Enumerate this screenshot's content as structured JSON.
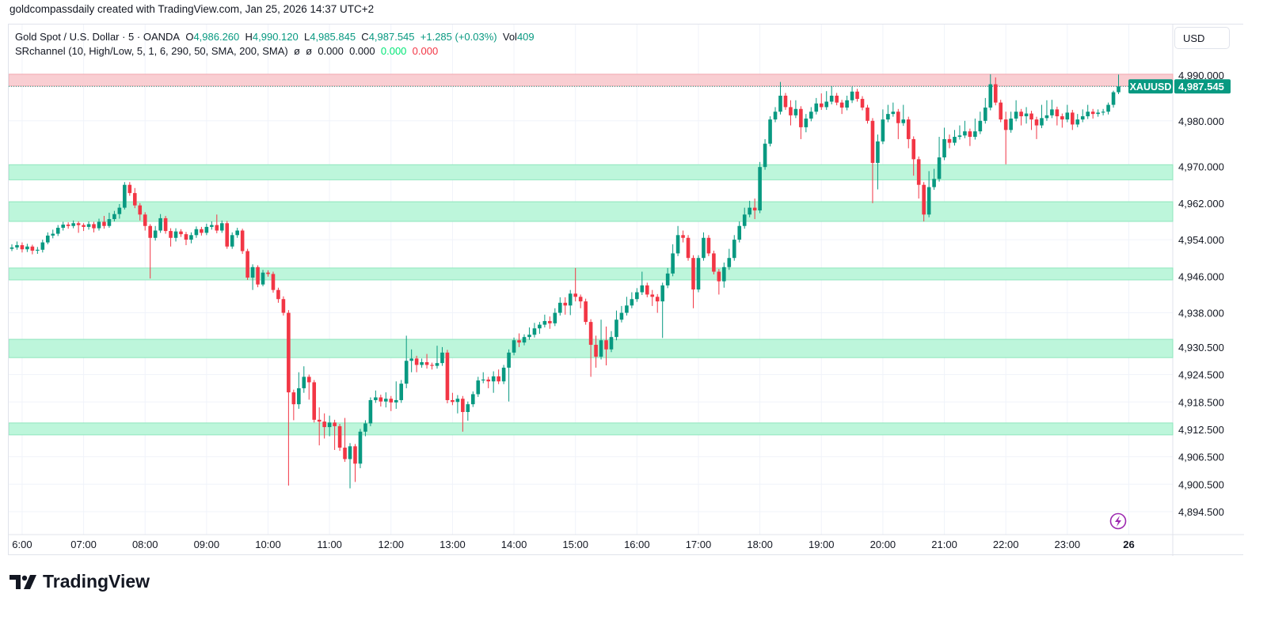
{
  "credit": "goldcompassdaily created with TradingView.com, Jan 25, 2026 14:37 UTC+2",
  "legend": {
    "symbol": "Gold Spot / U.S. Dollar · 5 · OANDA",
    "o_label": "O",
    "o": "4,986.260",
    "h_label": "H",
    "h": "4,990.120",
    "l_label": "L",
    "l": "4,985.845",
    "c_label": "C",
    "c": "4,987.545",
    "change": "+1.285 (+0.03%)",
    "vol_label": "Vol",
    "vol": "409",
    "indicator": "SRchannel (10, High/Low, 5, 1, 6, 290, 50, SMA, 200, SMA)",
    "ind_sym1": "ø",
    "ind_sym2": "ø",
    "ind_v1": "0.000",
    "ind_v2": "0.000",
    "ind_v3": "0.000",
    "ind_v4": "0.000"
  },
  "currency_button": "USD",
  "last_price": {
    "symbol": "XAUUSD",
    "value": "4,987.545"
  },
  "brand": "TradingView",
  "icons": {
    "alert": "lightning-icon",
    "logo": "tradingview-logo-icon"
  },
  "colors": {
    "up": "#089981",
    "down": "#f23645",
    "support_zone": "#b9f6d9",
    "resistance_zone": "#f8c9cd",
    "grid": "#f0f3fa"
  },
  "chart_data": {
    "type": "candlestick",
    "interval": "5",
    "start_time": "05:50",
    "y_ticks": [
      "4,990.000",
      "4,980.000",
      "4,970.000",
      "4,962.000",
      "4,954.000",
      "4,946.000",
      "4,938.000",
      "4,930.500",
      "4,924.500",
      "4,918.500",
      "4,912.500",
      "4,906.500",
      "4,900.500",
      "4,894.500"
    ],
    "y_tick_values": [
      4990,
      4980,
      4970,
      4962,
      4954,
      4946,
      4938,
      4930.5,
      4924.5,
      4918.5,
      4912.5,
      4906.5,
      4900.5,
      4894.5
    ],
    "x_ticks": [
      "6:00",
      "07:00",
      "08:00",
      "09:00",
      "10:00",
      "11:00",
      "12:00",
      "13:00",
      "14:00",
      "15:00",
      "16:00",
      "17:00",
      "18:00",
      "19:00",
      "20:00",
      "21:00",
      "22:00",
      "23:00",
      "26"
    ],
    "ylim": [
      4892,
      4995
    ],
    "grid": true,
    "support_zones": [
      [
        4967.1,
        4970.4
      ],
      [
        4958.0,
        4962.3
      ],
      [
        4945.2,
        4947.8
      ],
      [
        4928.2,
        4932.2
      ],
      [
        4911.3,
        4913.9
      ]
    ],
    "resistance_zones": [
      [
        4987.6,
        4990.2
      ]
    ],
    "candles_ohlc": [
      [
        4952.0,
        4953.0,
        4951.5,
        4952.3
      ],
      [
        4952.3,
        4953.6,
        4951.8,
        4952.8
      ],
      [
        4952.8,
        4953.4,
        4951.2,
        4951.9
      ],
      [
        4951.9,
        4953.1,
        4951.3,
        4952.5
      ],
      [
        4952.5,
        4952.9,
        4950.8,
        4951.6
      ],
      [
        4951.6,
        4952.4,
        4950.9,
        4951.8
      ],
      [
        4951.8,
        4954.0,
        4951.2,
        4953.4
      ],
      [
        4953.4,
        4955.6,
        4953.0,
        4954.9
      ],
      [
        4954.9,
        4956.2,
        4954.3,
        4955.3
      ],
      [
        4955.3,
        4957.2,
        4954.8,
        4956.6
      ],
      [
        4956.6,
        4957.9,
        4956.0,
        4957.3
      ],
      [
        4957.3,
        4957.8,
        4956.4,
        4957.0
      ],
      [
        4957.0,
        4958.2,
        4956.5,
        4957.6
      ],
      [
        4957.6,
        4958.0,
        4955.5,
        4957.2
      ],
      [
        4957.2,
        4957.6,
        4955.9,
        4956.8
      ],
      [
        4956.8,
        4958.0,
        4956.2,
        4957.4
      ],
      [
        4957.4,
        4957.9,
        4955.6,
        4956.5
      ],
      [
        4956.5,
        4958.6,
        4956.0,
        4957.9
      ],
      [
        4957.9,
        4959.2,
        4956.4,
        4957.0
      ],
      [
        4957.0,
        4959.9,
        4956.6,
        4958.5
      ],
      [
        4958.5,
        4960.3,
        4958.0,
        4959.6
      ],
      [
        4959.6,
        4961.8,
        4958.6,
        4961.0
      ],
      [
        4961.0,
        4966.6,
        4960.6,
        4966.0
      ],
      [
        4966.0,
        4966.6,
        4963.6,
        4964.2
      ],
      [
        4964.2,
        4965.3,
        4960.9,
        4961.5
      ],
      [
        4961.5,
        4962.0,
        4958.2,
        4959.5
      ],
      [
        4959.5,
        4960.0,
        4956.0,
        4957.0
      ],
      [
        4957.0,
        4957.4,
        4945.5,
        4954.4
      ],
      [
        4954.4,
        4957.0,
        4953.8,
        4956.0
      ],
      [
        4956.0,
        4959.6,
        4955.5,
        4958.7
      ],
      [
        4958.7,
        4959.2,
        4955.3,
        4955.9
      ],
      [
        4955.9,
        4956.5,
        4952.5,
        4954.4
      ],
      [
        4954.4,
        4956.5,
        4953.6,
        4955.8
      ],
      [
        4955.8,
        4956.3,
        4954.6,
        4955.2
      ],
      [
        4955.2,
        4955.7,
        4952.8,
        4954.0
      ],
      [
        4954.0,
        4955.6,
        4953.2,
        4955.0
      ],
      [
        4955.0,
        4956.9,
        4954.4,
        4956.3
      ],
      [
        4956.3,
        4956.8,
        4954.9,
        4955.5
      ],
      [
        4955.5,
        4957.5,
        4955.0,
        4956.8
      ],
      [
        4956.8,
        4958.0,
        4956.2,
        4957.2
      ],
      [
        4957.2,
        4959.5,
        4955.4,
        4956.0
      ],
      [
        4956.0,
        4958.2,
        4955.5,
        4957.6
      ],
      [
        4957.6,
        4958.1,
        4952.0,
        4952.5
      ],
      [
        4952.5,
        4955.6,
        4952.0,
        4955.0
      ],
      [
        4955.0,
        4956.6,
        4954.4,
        4956.0
      ],
      [
        4956.0,
        4956.4,
        4950.9,
        4951.5
      ],
      [
        4951.5,
        4952.0,
        4945.2,
        4945.7
      ],
      [
        4945.7,
        4948.6,
        4943.0,
        4948.0
      ],
      [
        4948.0,
        4948.4,
        4943.6,
        4944.2
      ],
      [
        4944.2,
        4947.4,
        4943.8,
        4946.8
      ],
      [
        4946.8,
        4947.3,
        4945.9,
        4946.5
      ],
      [
        4946.5,
        4947.0,
        4942.4,
        4943.0
      ],
      [
        4943.0,
        4943.5,
        4940.2,
        4941.0
      ],
      [
        4941.0,
        4941.6,
        4937.4,
        4938.0
      ],
      [
        4938.0,
        4938.6,
        4900.2,
        4920.6
      ],
      [
        4920.6,
        4921.2,
        4914.5,
        4918.0
      ],
      [
        4918.0,
        4925.0,
        4917.0,
        4921.5
      ],
      [
        4921.5,
        4926.3,
        4920.5,
        4924.0
      ],
      [
        4924.0,
        4924.5,
        4919.0,
        4922.8
      ],
      [
        4922.8,
        4923.3,
        4914.0,
        4914.6
      ],
      [
        4914.6,
        4917.3,
        4909.0,
        4914.2
      ],
      [
        4914.2,
        4916.0,
        4910.5,
        4913.0
      ],
      [
        4913.0,
        4915.5,
        4911.0,
        4914.0
      ],
      [
        4914.0,
        4914.6,
        4908.0,
        4913.2
      ],
      [
        4913.2,
        4913.7,
        4907.8,
        4908.5
      ],
      [
        4908.5,
        4915.0,
        4905.4,
        4906.0
      ],
      [
        4906.0,
        4909.5,
        4899.6,
        4908.8
      ],
      [
        4908.8,
        4909.3,
        4901.0,
        4905.0
      ],
      [
        4905.0,
        4912.6,
        4904.0,
        4912.0
      ],
      [
        4912.0,
        4914.5,
        4911.0,
        4913.8
      ],
      [
        4913.8,
        4919.5,
        4913.2,
        4918.9
      ],
      [
        4918.9,
        4921.0,
        4918.3,
        4919.5
      ],
      [
        4919.5,
        4920.1,
        4917.5,
        4918.6
      ],
      [
        4918.6,
        4920.6,
        4917.3,
        4919.2
      ],
      [
        4919.2,
        4919.8,
        4916.5,
        4918.4
      ],
      [
        4918.4,
        4923.0,
        4917.0,
        4918.9
      ],
      [
        4918.9,
        4923.3,
        4918.3,
        4922.5
      ],
      [
        4922.5,
        4933.0,
        4921.5,
        4927.5
      ],
      [
        4927.5,
        4930.0,
        4925.0,
        4928.0
      ],
      [
        4928.0,
        4928.6,
        4925.0,
        4926.6
      ],
      [
        4926.6,
        4928.0,
        4926.0,
        4927.2
      ],
      [
        4927.2,
        4929.0,
        4925.8,
        4926.6
      ],
      [
        4926.6,
        4927.1,
        4925.6,
        4926.4
      ],
      [
        4926.4,
        4930.8,
        4925.8,
        4927.0
      ],
      [
        4927.0,
        4930.5,
        4926.4,
        4929.3
      ],
      [
        4929.3,
        4929.9,
        4918.2,
        4918.9
      ],
      [
        4918.9,
        4920.5,
        4917.8,
        4918.5
      ],
      [
        4918.5,
        4920.0,
        4916.0,
        4919.2
      ],
      [
        4919.2,
        4919.8,
        4912.0,
        4916.3
      ],
      [
        4916.3,
        4918.6,
        4914.4,
        4918.0
      ],
      [
        4918.0,
        4920.8,
        4917.4,
        4920.2
      ],
      [
        4920.2,
        4924.0,
        4919.6,
        4923.2
      ],
      [
        4923.2,
        4925.0,
        4922.6,
        4923.4
      ],
      [
        4923.4,
        4924.0,
        4921.5,
        4923.0
      ],
      [
        4923.0,
        4925.2,
        4920.5,
        4924.1
      ],
      [
        4924.1,
        4925.6,
        4922.4,
        4923.0
      ],
      [
        4923.0,
        4926.6,
        4922.4,
        4926.0
      ],
      [
        4926.0,
        4930.0,
        4918.6,
        4929.3
      ],
      [
        4929.3,
        4932.6,
        4928.7,
        4932.0
      ],
      [
        4932.0,
        4933.5,
        4930.5,
        4931.5
      ],
      [
        4931.5,
        4933.3,
        4930.9,
        4932.7
      ],
      [
        4932.7,
        4934.8,
        4932.1,
        4933.2
      ],
      [
        4933.2,
        4935.8,
        4932.6,
        4934.6
      ],
      [
        4934.6,
        4936.0,
        4933.4,
        4935.4
      ],
      [
        4935.4,
        4937.6,
        4934.8,
        4936.2
      ],
      [
        4936.2,
        4937.2,
        4934.5,
        4935.7
      ],
      [
        4935.7,
        4939.0,
        4935.1,
        4938.0
      ],
      [
        4938.0,
        4941.4,
        4937.4,
        4940.2
      ],
      [
        4940.2,
        4941.4,
        4937.6,
        4939.6
      ],
      [
        4939.6,
        4943.0,
        4937.5,
        4942.2
      ],
      [
        4942.2,
        4947.8,
        4940.5,
        4941.5
      ],
      [
        4941.5,
        4942.0,
        4939.0,
        4940.5
      ],
      [
        4940.5,
        4941.1,
        4935.4,
        4936.0
      ],
      [
        4936.0,
        4936.6,
        4924.0,
        4931.0
      ],
      [
        4931.0,
        4933.0,
        4926.0,
        4928.4
      ],
      [
        4928.4,
        4936.5,
        4927.8,
        4932.0
      ],
      [
        4932.0,
        4935.0,
        4926.5,
        4930.0
      ],
      [
        4930.0,
        4934.0,
        4929.4,
        4932.7
      ],
      [
        4932.7,
        4938.5,
        4932.0,
        4936.5
      ],
      [
        4936.5,
        4939.5,
        4935.9,
        4938.0
      ],
      [
        4938.0,
        4941.5,
        4937.4,
        4939.6
      ],
      [
        4939.6,
        4942.5,
        4939.0,
        4941.0
      ],
      [
        4941.0,
        4943.4,
        4940.4,
        4942.5
      ],
      [
        4942.5,
        4947.0,
        4941.9,
        4944.0
      ],
      [
        4944.0,
        4944.6,
        4941.4,
        4942.0
      ],
      [
        4942.0,
        4943.0,
        4939.5,
        4941.5
      ],
      [
        4941.5,
        4942.1,
        4938.0,
        4940.5
      ],
      [
        4940.5,
        4944.6,
        4932.5,
        4944.0
      ],
      [
        4944.0,
        4947.8,
        4943.4,
        4946.6
      ],
      [
        4946.6,
        4953.0,
        4946.0,
        4951.0
      ],
      [
        4951.0,
        4957.0,
        4950.4,
        4955.0
      ],
      [
        4955.0,
        4956.0,
        4953.4,
        4954.4
      ],
      [
        4954.4,
        4955.0,
        4949.4,
        4950.0
      ],
      [
        4950.0,
        4950.6,
        4939.0,
        4943.1
      ],
      [
        4943.1,
        4950.6,
        4942.5,
        4950.0
      ],
      [
        4950.0,
        4955.6,
        4949.4,
        4954.4
      ],
      [
        4954.4,
        4955.0,
        4950.4,
        4951.0
      ],
      [
        4951.0,
        4951.6,
        4946.4,
        4947.0
      ],
      [
        4947.0,
        4947.6,
        4942.0,
        4944.9
      ],
      [
        4944.9,
        4949.0,
        4943.5,
        4948.0
      ],
      [
        4948.0,
        4952.0,
        4947.4,
        4950.0
      ],
      [
        4950.0,
        4955.0,
        4949.4,
        4954.0
      ],
      [
        4954.0,
        4958.0,
        4953.4,
        4957.0
      ],
      [
        4957.0,
        4961.0,
        4956.4,
        4959.5
      ],
      [
        4959.5,
        4962.5,
        4958.9,
        4961.0
      ],
      [
        4961.0,
        4963.0,
        4958.5,
        4960.4
      ],
      [
        4960.4,
        4971.0,
        4959.8,
        4969.9
      ],
      [
        4969.9,
        4976.0,
        4969.3,
        4975.0
      ],
      [
        4975.0,
        4981.0,
        4974.4,
        4980.3
      ],
      [
        4980.3,
        4983.0,
        4979.7,
        4982.0
      ],
      [
        4982.0,
        4988.5,
        4981.4,
        4985.5
      ],
      [
        4985.5,
        4986.1,
        4982.4,
        4983.0
      ],
      [
        4983.0,
        4984.5,
        4979.0,
        4981.2
      ],
      [
        4981.2,
        4984.5,
        4980.6,
        4982.6
      ],
      [
        4982.6,
        4983.2,
        4976.0,
        4978.6
      ],
      [
        4978.6,
        4981.5,
        4977.5,
        4980.5
      ],
      [
        4980.5,
        4983.0,
        4979.9,
        4982.0
      ],
      [
        4982.0,
        4985.0,
        4981.4,
        4983.8
      ],
      [
        4983.8,
        4986.0,
        4982.4,
        4983.0
      ],
      [
        4983.0,
        4986.5,
        4982.4,
        4984.2
      ],
      [
        4984.2,
        4987.6,
        4983.6,
        4985.5
      ],
      [
        4985.5,
        4986.1,
        4983.4,
        4984.0
      ],
      [
        4984.0,
        4984.6,
        4981.5,
        4982.9
      ],
      [
        4982.9,
        4985.5,
        4982.3,
        4984.5
      ],
      [
        4984.5,
        4987.5,
        4983.9,
        4986.4
      ],
      [
        4986.4,
        4987.0,
        4984.2,
        4984.8
      ],
      [
        4984.8,
        4985.4,
        4982.3,
        4982.9
      ],
      [
        4982.9,
        4983.5,
        4979.4,
        4980.0
      ],
      [
        4980.0,
        4980.6,
        4962.0,
        4970.8
      ],
      [
        4970.8,
        4977.0,
        4965.0,
        4975.5
      ],
      [
        4975.5,
        4982.5,
        4974.9,
        4980.3
      ],
      [
        4980.3,
        4983.5,
        4979.7,
        4981.5
      ],
      [
        4981.5,
        4984.0,
        4980.9,
        4982.0
      ],
      [
        4982.0,
        4982.6,
        4976.0,
        4979.5
      ],
      [
        4979.5,
        4983.5,
        4978.9,
        4980.3
      ],
      [
        4980.3,
        4980.9,
        4974.0,
        4976.0
      ],
      [
        4976.0,
        4976.6,
        4968.0,
        4971.6
      ],
      [
        4971.6,
        4972.2,
        4963.0,
        4966.0
      ],
      [
        4966.0,
        4966.6,
        4958.0,
        4959.5
      ],
      [
        4959.5,
        4969.0,
        4958.9,
        4965.5
      ],
      [
        4965.5,
        4969.5,
        4964.9,
        4967.3
      ],
      [
        4967.3,
        4976.5,
        4966.7,
        4972.0
      ],
      [
        4972.0,
        4978.5,
        4971.4,
        4976.0
      ],
      [
        4976.0,
        4977.0,
        4974.0,
        4975.2
      ],
      [
        4975.2,
        4978.0,
        4974.6,
        4976.5
      ],
      [
        4976.5,
        4979.0,
        4975.9,
        4976.8
      ],
      [
        4976.8,
        4980.0,
        4976.2,
        4977.7
      ],
      [
        4977.7,
        4978.3,
        4974.5,
        4976.5
      ],
      [
        4976.5,
        4980.5,
        4975.9,
        4977.7
      ],
      [
        4977.7,
        4982.0,
        4977.1,
        4980.0
      ],
      [
        4980.0,
        4985.0,
        4979.4,
        4982.9
      ],
      [
        4982.9,
        4990.2,
        4982.3,
        4988.0
      ],
      [
        4988.0,
        4989.5,
        4983.4,
        4984.0
      ],
      [
        4984.0,
        4984.6,
        4979.7,
        4980.3
      ],
      [
        4980.3,
        4982.0,
        4970.5,
        4978.0
      ],
      [
        4978.0,
        4982.0,
        4977.4,
        4980.5
      ],
      [
        4980.5,
        4984.5,
        4979.9,
        4982.0
      ],
      [
        4982.0,
        4982.6,
        4979.0,
        4981.0
      ],
      [
        4981.0,
        4983.0,
        4979.4,
        4981.6
      ],
      [
        4981.6,
        4982.2,
        4978.0,
        4980.3
      ],
      [
        4980.3,
        4980.9,
        4976.0,
        4979.0
      ],
      [
        4979.0,
        4983.5,
        4978.4,
        4980.6
      ],
      [
        4980.6,
        4984.5,
        4980.0,
        4981.2
      ],
      [
        4981.2,
        4984.6,
        4980.6,
        4982.5
      ],
      [
        4982.5,
        4983.1,
        4979.0,
        4981.0
      ],
      [
        4981.0,
        4981.6,
        4978.5,
        4980.3
      ],
      [
        4980.3,
        4983.5,
        4979.7,
        4981.8
      ],
      [
        4981.8,
        4982.4,
        4978.0,
        4979.2
      ],
      [
        4979.2,
        4981.5,
        4978.6,
        4980.3
      ],
      [
        4980.3,
        4982.5,
        4979.7,
        4981.0
      ],
      [
        4981.0,
        4983.5,
        4980.4,
        4982.0
      ],
      [
        4982.0,
        4982.6,
        4980.5,
        4981.5
      ],
      [
        4981.5,
        4982.5,
        4980.9,
        4981.8
      ],
      [
        4981.8,
        4982.6,
        4981.2,
        4982.0
      ],
      [
        4982.0,
        4984.0,
        4981.4,
        4983.5
      ],
      [
        4983.5,
        4986.6,
        4982.9,
        4986.26
      ],
      [
        4986.26,
        4990.12,
        4985.845,
        4987.545
      ]
    ],
    "last_close": 4987.545
  }
}
